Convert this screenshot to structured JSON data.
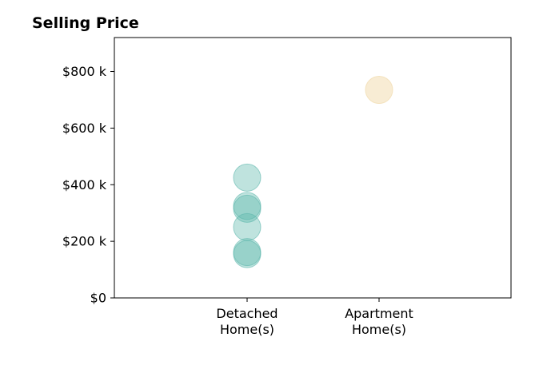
{
  "chart_data": {
    "type": "scatter",
    "title": "Selling Price",
    "xlabel": "",
    "ylabel": "",
    "categories": [
      [
        "Detached",
        "Home(s)"
      ],
      [
        "Apartment",
        "Home(s)"
      ]
    ],
    "ylim": [
      0,
      920
    ],
    "yticks": [
      {
        "value": 0,
        "label": "$0"
      },
      {
        "value": 200,
        "label": "$200 k"
      },
      {
        "value": 400,
        "label": "$400 k"
      },
      {
        "value": 600,
        "label": "$600 k"
      },
      {
        "value": 800,
        "label": "$800 k"
      }
    ],
    "grid": false,
    "legend": "none",
    "series": [
      {
        "category_index": 0,
        "color": "#5fb8ad",
        "opacity": 0.4,
        "values": [
          425,
          325,
          315,
          250,
          162,
          155
        ]
      },
      {
        "category_index": 1,
        "color": "#f2dcb0",
        "opacity": 0.55,
        "values": [
          735
        ]
      }
    ]
  }
}
